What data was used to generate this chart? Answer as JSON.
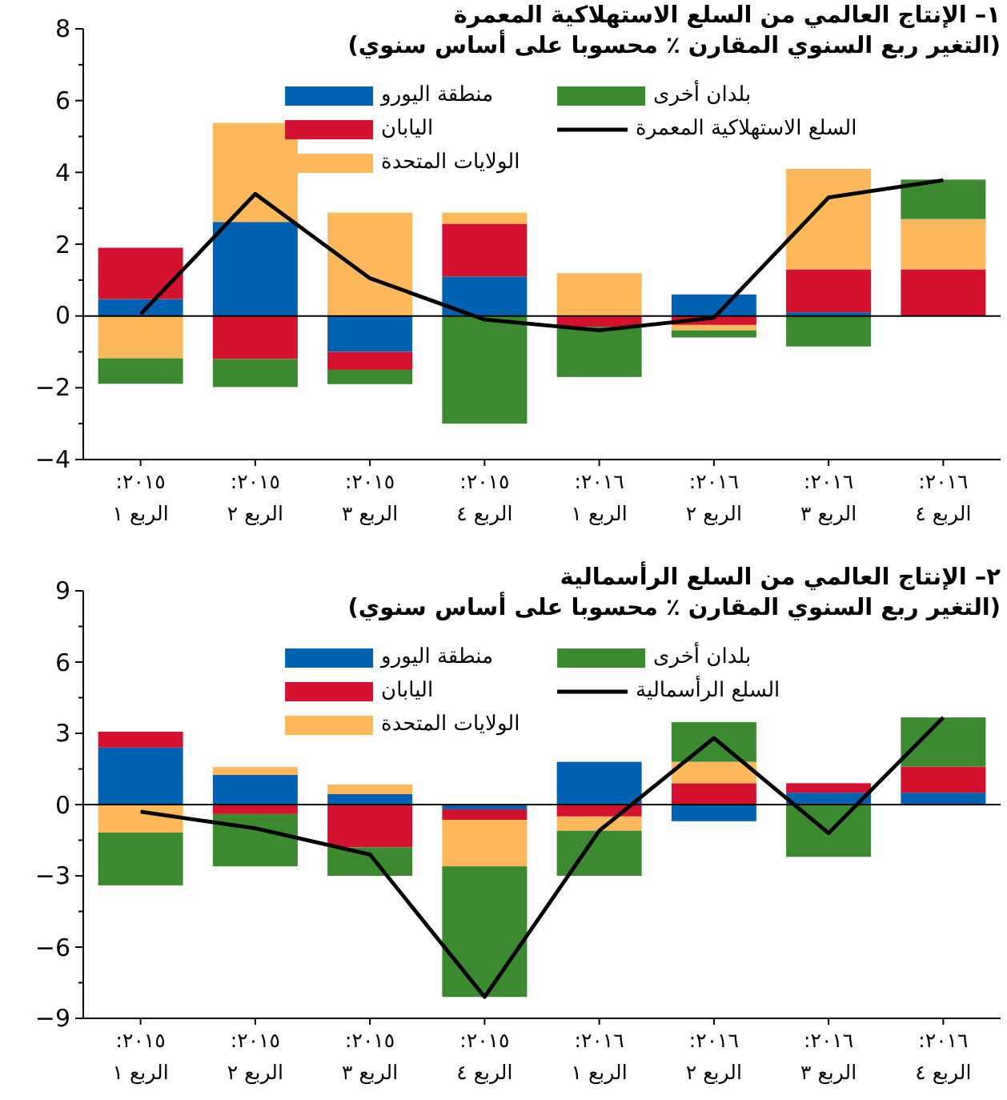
{
  "chart_data": [
    {
      "type": "bar",
      "stacked": true,
      "title": "١– الإنتاج العالمي من السلع الاستهلاكية المعمرة",
      "subtitle": "(التغير ربع السنوي المقارن ٪ محسوبا على أساس سنوي)",
      "categories": [
        "٢٠١٥: الربع ١",
        "٢٠١٥: الربع ٢",
        "٢٠١٥: الربع ٣",
        "٢٠١٥: الربع ٤",
        "٢٠١٦: الربع ١",
        "٢٠١٦: الربع ٢",
        "٢٠١٦: الربع ٣",
        "٢٠١٦: الربع ٤"
      ],
      "series": [
        {
          "name": "منطقة اليورو",
          "color": "#0062b1",
          "values": [
            0.47,
            2.62,
            -1.0,
            1.1,
            null,
            0.6,
            0.1,
            null
          ]
        },
        {
          "name": "اليابان",
          "color": "#d2122e",
          "values": [
            1.43,
            -1.2,
            -0.5,
            1.47,
            -0.3,
            -0.25,
            1.2,
            1.3
          ]
        },
        {
          "name": "الولايات المتحدة",
          "color": "#fcb85a",
          "values": [
            -1.18,
            2.76,
            2.88,
            0.31,
            1.19,
            -0.15,
            2.8,
            1.4
          ]
        },
        {
          "name": "بلدان أخرى",
          "color": "#3b8a30",
          "values": [
            -0.71,
            -0.78,
            -0.4,
            -3.0,
            -1.4,
            -0.2,
            -0.85,
            1.1
          ]
        },
        {
          "name": "السلع الاستهلاكية المعمرة",
          "type": "line",
          "color": "#000000",
          "values": [
            0.05,
            3.4,
            1.05,
            -0.1,
            -0.4,
            -0.05,
            3.3,
            3.78
          ]
        }
      ],
      "ylim": [
        -4,
        8
      ],
      "yticks": [
        -4,
        -2,
        0,
        2,
        4,
        6,
        8
      ],
      "legend": "top",
      "ref_lines": [
        {
          "axis": "y",
          "value": 0
        }
      ]
    },
    {
      "type": "bar",
      "stacked": true,
      "title": "٢– الإنتاج العالمي من السلع الرأسمالية",
      "subtitle": "(التغير ربع السنوي المقارن ٪ محسوبا على أساس سنوي)",
      "categories": [
        "٢٠١٥: الربع ١",
        "٢٠١٥: الربع ٢",
        "٢٠١٥: الربع ٣",
        "٢٠١٥: الربع ٤",
        "٢٠١٦: الربع ١",
        "٢٠١٦: الربع ٢",
        "٢٠١٦: الربع ٣",
        "٢٠١٦: الربع ٤"
      ],
      "series": [
        {
          "name": "منطقة اليورو",
          "color": "#0062b1",
          "values": [
            2.4,
            1.25,
            0.44,
            -0.2,
            1.8,
            -0.7,
            0.5,
            0.5
          ]
        },
        {
          "name": "اليابان",
          "color": "#d2122e",
          "values": [
            0.67,
            -0.4,
            -1.8,
            -0.44,
            -0.5,
            0.9,
            0.4,
            1.1
          ]
        },
        {
          "name": "الولايات المتحدة",
          "color": "#fcb85a",
          "values": [
            -1.18,
            0.33,
            0.4,
            -1.96,
            -0.6,
            0.9,
            null,
            null
          ]
        },
        {
          "name": "بلدان أخرى",
          "color": "#3b8a30",
          "values": [
            -2.22,
            -2.2,
            -1.2,
            -5.5,
            -1.9,
            1.67,
            -2.2,
            2.07
          ]
        },
        {
          "name": "السلع الرأسمالية",
          "type": "line",
          "color": "#000000",
          "values": [
            -0.3,
            -1.0,
            -2.1,
            -8.1,
            -1.1,
            2.8,
            -1.2,
            3.67
          ]
        }
      ],
      "ylim": [
        -9,
        9
      ],
      "yticks": [
        -9,
        -6,
        -3,
        0,
        3,
        6,
        9
      ],
      "legend": "top",
      "ref_lines": [
        {
          "axis": "y",
          "value": 0
        }
      ]
    }
  ]
}
